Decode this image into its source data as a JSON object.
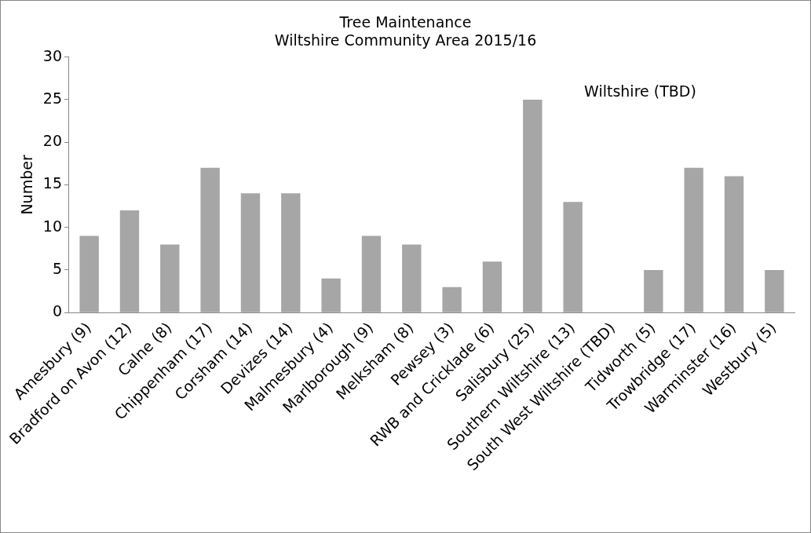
{
  "chart_data": {
    "type": "bar",
    "title": "Tree Maintenance",
    "subtitle": "Wiltshire Community Area 2015/16",
    "ylabel": "Number",
    "categories": [
      "Amesbury (9)",
      "Bradford on Avon (12)",
      "Calne (8)",
      "Chippenham (17)",
      "Corsham (14)",
      "Devizes (14)",
      "Malmesbury (4)",
      "Marlborough (9)",
      "Melksham (8)",
      "Pewsey (3)",
      "RWB and Cricklade (6)",
      "Salisbury (25)",
      "Southern Wiltshire (13)",
      "South West Wiltshire (TBD)",
      "Tidworth (5)",
      "Trowbridge (17)",
      "Warminster (16)",
      "Westbury (5)"
    ],
    "values": [
      9,
      12,
      8,
      17,
      14,
      14,
      4,
      9,
      8,
      3,
      6,
      25,
      13,
      null,
      5,
      17,
      16,
      5
    ],
    "color": "#a6a6a6",
    "ylim": [
      0,
      30
    ],
    "yticks": [
      0,
      5,
      10,
      15,
      20,
      25,
      30
    ],
    "grid": false,
    "legend": false,
    "annotations": [
      "Wiltshire (TBD)"
    ]
  }
}
